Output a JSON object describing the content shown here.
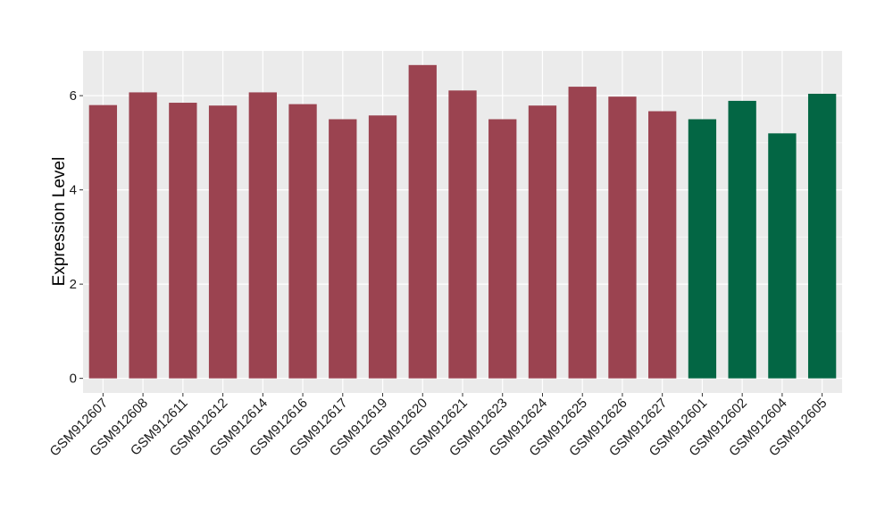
{
  "chart_data": {
    "type": "bar",
    "title": "",
    "xlabel": "",
    "ylabel": "Expression Level",
    "ylim": [
      -0.31,
      6.95
    ],
    "yticks": [
      0,
      2,
      4,
      6
    ],
    "grid": true,
    "legend": "none",
    "categories": [
      "GSM912607",
      "GSM912608",
      "GSM912611",
      "GSM912612",
      "GSM912614",
      "GSM912616",
      "GSM912617",
      "GSM912619",
      "GSM912620",
      "GSM912621",
      "GSM912623",
      "GSM912624",
      "GSM912625",
      "GSM912626",
      "GSM912627",
      "GSM912601",
      "GSM912602",
      "GSM912604",
      "GSM912605"
    ],
    "values": [
      5.8,
      6.07,
      5.85,
      5.79,
      6.07,
      5.82,
      5.5,
      5.58,
      6.65,
      6.11,
      5.5,
      5.79,
      6.19,
      5.98,
      5.67,
      5.5,
      5.89,
      5.2,
      6.04
    ],
    "group_index": [
      0,
      0,
      0,
      0,
      0,
      0,
      0,
      0,
      0,
      0,
      0,
      0,
      0,
      0,
      0,
      1,
      1,
      1,
      1
    ],
    "group_colors": [
      "#9b4350",
      "#036644"
    ],
    "panel_background": "#ebebeb",
    "gridline_color": "#ffffff"
  }
}
